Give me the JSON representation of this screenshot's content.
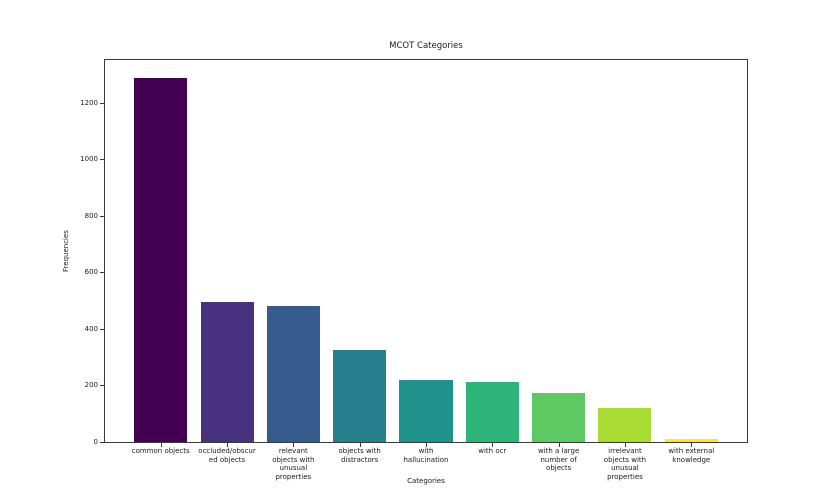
{
  "chart_data": {
    "type": "bar",
    "title": "MCOT Categories",
    "xlabel": "Categories",
    "ylabel": "Frequencies",
    "categories": [
      "common objects",
      "occluded/obscured objects",
      "relevant objects with unusual properties",
      "objects with distractors",
      "with hallucination",
      "with ocr",
      "with a large number of objects",
      "irrelevant objects with unusual properties",
      "with external knowledge"
    ],
    "tick_labels": [
      "common objects",
      "occluded/obscur\ned objects",
      "relevant\nobjects with\nunusual\nproperties",
      "objects with\ndistractors",
      "with\nhallucination",
      "with ocr",
      "with a large\nnumber of\nobjects",
      "irrelevant\nobjects with\nunusual\nproperties",
      "with external\nknowledge"
    ],
    "values": [
      1288,
      495,
      480,
      326,
      218,
      213,
      175,
      122,
      11
    ],
    "bar_colors": [
      "#440154",
      "#46327e",
      "#365c8d",
      "#277f8e",
      "#21918c",
      "#2fb47c",
      "#5ec962",
      "#a8db34",
      "#fde725"
    ],
    "yticks": [
      0,
      200,
      400,
      600,
      800,
      1000,
      1200
    ],
    "ylim": [
      0,
      1352
    ],
    "xlim": [
      -0.84,
      8.84
    ],
    "bar_width": 0.8,
    "grid": false,
    "legend": "none",
    "background_color": "#ffffff",
    "spine_color": "#3a3a3a"
  }
}
